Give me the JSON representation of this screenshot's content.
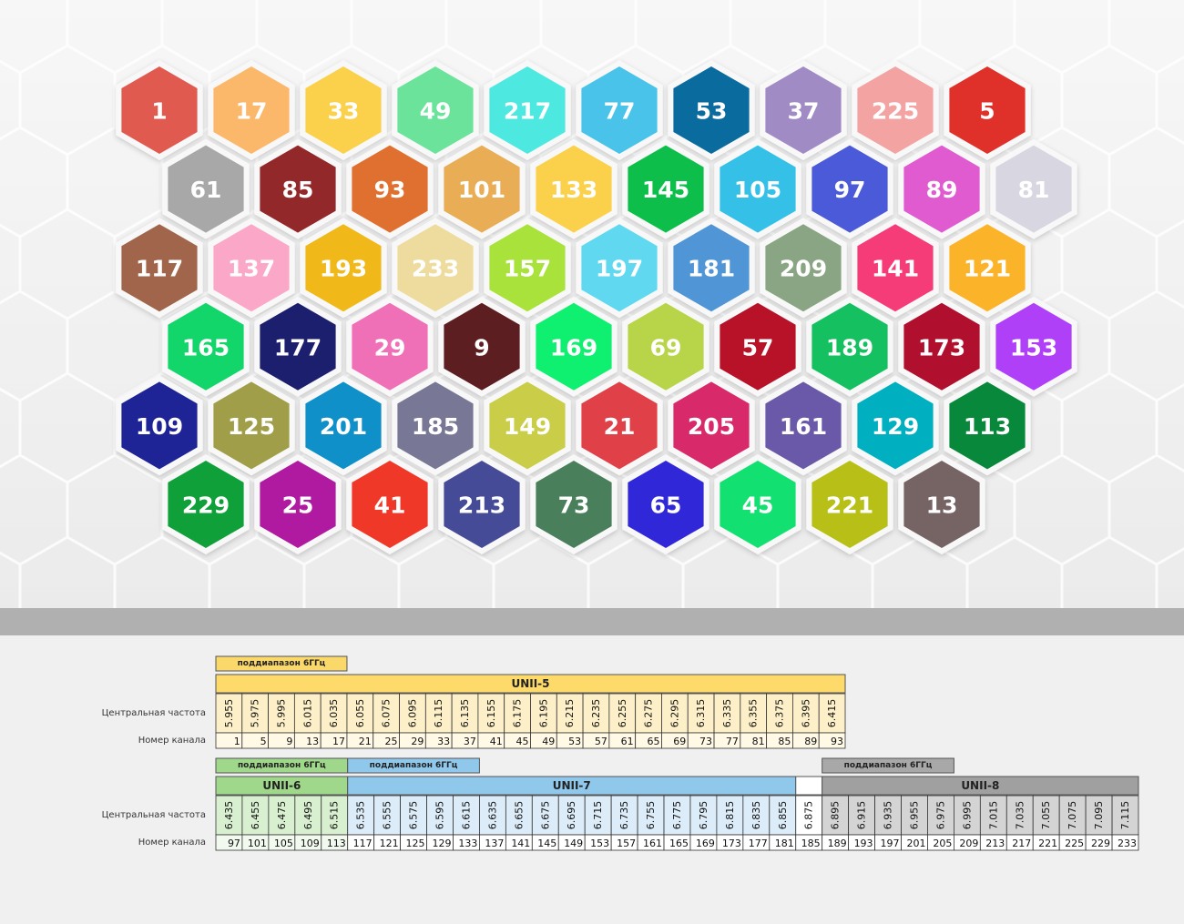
{
  "hexagons": {
    "rows": [
      [
        {
          "label": 1,
          "color": "#e05a50"
        },
        {
          "label": 17,
          "color": "#fbb86a"
        },
        {
          "label": 33,
          "color": "#fbd04a"
        },
        {
          "label": 49,
          "color": "#6be39a"
        },
        {
          "label": 217,
          "color": "#4de8e0"
        },
        {
          "label": 77,
          "color": "#49c3ea"
        },
        {
          "label": 53,
          "color": "#0a6b9e"
        },
        {
          "label": 37,
          "color": "#a08bc4"
        },
        {
          "label": 225,
          "color": "#f4a3a3"
        },
        {
          "label": 5,
          "color": "#e0302a"
        }
      ],
      [
        {
          "label": 61,
          "color": "#a8a8a8"
        },
        {
          "label": 85,
          "color": "#92282a"
        },
        {
          "label": 93,
          "color": "#e07030"
        },
        {
          "label": 101,
          "color": "#e8ad55"
        },
        {
          "label": 133,
          "color": "#fbd04a"
        },
        {
          "label": 145,
          "color": "#0dbf4a"
        },
        {
          "label": 105,
          "color": "#35c0e8"
        },
        {
          "label": 97,
          "color": "#4a5ad8"
        },
        {
          "label": 89,
          "color": "#e05ad0"
        },
        {
          "label": 81,
          "color": "#d8d6e0"
        }
      ],
      [
        {
          "label": 117,
          "color": "#a0654a"
        },
        {
          "label": 137,
          "color": "#fba8c8"
        },
        {
          "label": 193,
          "color": "#f0b818"
        },
        {
          "label": 233,
          "color": "#eedc9e"
        },
        {
          "label": 157,
          "color": "#a8e23a"
        },
        {
          "label": 197,
          "color": "#5fd8f0"
        },
        {
          "label": 181,
          "color": "#5095d5"
        },
        {
          "label": 209,
          "color": "#8aa584"
        },
        {
          "label": 141,
          "color": "#f53c78"
        },
        {
          "label": 121,
          "color": "#fbb42a"
        }
      ],
      [
        {
          "label": 165,
          "color": "#12d66a"
        },
        {
          "label": 177,
          "color": "#1c1e6e"
        },
        {
          "label": 29,
          "color": "#f070b8"
        },
        {
          "label": 9,
          "color": "#5c1e20"
        },
        {
          "label": 169,
          "color": "#10f070"
        },
        {
          "label": 69,
          "color": "#b8d448"
        },
        {
          "label": 57,
          "color": "#b81228"
        },
        {
          "label": 189,
          "color": "#15c060"
        },
        {
          "label": 173,
          "color": "#b0102e"
        },
        {
          "label": 153,
          "color": "#b040f8"
        }
      ],
      [
        {
          "label": 109,
          "color": "#1e2496"
        },
        {
          "label": 125,
          "color": "#a09e48"
        },
        {
          "label": 201,
          "color": "#1090c8"
        },
        {
          "label": 185,
          "color": "#787896"
        },
        {
          "label": 149,
          "color": "#cacd48"
        },
        {
          "label": 21,
          "color": "#e04048"
        },
        {
          "label": 205,
          "color": "#d82a6a"
        },
        {
          "label": 161,
          "color": "#6a58a8"
        },
        {
          "label": 129,
          "color": "#00b0c0"
        },
        {
          "label": 113,
          "color": "#08883a"
        }
      ],
      [
        {
          "label": 229,
          "color": "#10a03a"
        },
        {
          "label": 25,
          "color": "#b01aa0"
        },
        {
          "label": 41,
          "color": "#f03828"
        },
        {
          "label": 213,
          "color": "#464b98"
        },
        {
          "label": 73,
          "color": "#4a7f5c"
        },
        {
          "label": 65,
          "color": "#3028d8"
        },
        {
          "label": 45,
          "color": "#12e070"
        },
        {
          "label": 221,
          "color": "#b8c018"
        },
        {
          "label": 13,
          "color": "#766465"
        }
      ]
    ]
  },
  "tables": [
    {
      "row_labels": [
        "Центральная частота",
        "Номер канала"
      ],
      "groups": [
        {
          "subband": "поддиапазон 6ГГц",
          "subband_color": "#fbd86a",
          "band": "UNII-5",
          "band_color": "#fdda6a",
          "cell_color": "#fdf0c8",
          "channel_color": "#fff9e6",
          "frequencies": [
            5.955,
            5.975,
            5.995,
            6.015,
            6.035,
            6.055,
            6.075,
            6.095,
            6.115,
            6.135,
            6.155,
            6.175,
            6.195,
            6.215,
            6.235,
            6.255,
            6.275,
            6.295,
            6.315,
            6.335,
            6.355,
            6.375,
            6.395,
            6.415
          ],
          "channels": [
            1,
            5,
            9,
            13,
            17,
            21,
            25,
            29,
            33,
            37,
            41,
            45,
            49,
            53,
            57,
            61,
            65,
            69,
            73,
            77,
            81,
            85,
            89,
            93
          ]
        }
      ]
    },
    {
      "row_labels": [
        "Центральная частота",
        "Номер канала"
      ],
      "groups": [
        {
          "subband": "поддиапазон 6ГГц",
          "subband_color": "#9fd88a",
          "band": "UNII-6",
          "band_color": "#9fd88a",
          "cell_color": "#d8f0d0",
          "channel_color": "#f2faef",
          "frequencies": [
            6.435,
            6.455,
            6.475,
            6.495,
            6.515
          ],
          "channels": [
            97,
            101,
            105,
            109,
            113
          ]
        },
        {
          "subband": "поддиапазон 6ГГц",
          "subband_color": "#90c8ec",
          "band": "UNII-7",
          "band_color": "#90c8ec",
          "cell_color": "#dcecf8",
          "channel_color": "#ffffff",
          "frequencies": [
            6.535,
            6.555,
            6.575,
            6.595,
            6.615,
            6.635,
            6.655,
            6.675,
            6.695,
            6.715,
            6.735,
            6.755,
            6.775,
            6.795,
            6.815,
            6.835,
            6.855
          ],
          "channels": [
            117,
            121,
            125,
            129,
            133,
            137,
            141,
            145,
            149,
            153,
            157,
            161,
            165,
            169,
            173,
            177,
            181
          ]
        },
        {
          "band_color": "#ffffff",
          "cell_color": "#ffffff",
          "channel_color": "#ffffff",
          "frequencies": [
            6.875
          ],
          "channels": [
            185
          ]
        },
        {
          "subband": "поддиапазон 6ГГц",
          "subband_color": "#a8a8a8",
          "band": "UNII-8",
          "band_color": "#a0a0a0",
          "cell_color": "#d4d4d4",
          "channel_color": "#ffffff",
          "frequencies": [
            6.895,
            6.915,
            6.935,
            6.955,
            6.975,
            6.995,
            7.015,
            7.035,
            7.055,
            7.075,
            7.095,
            7.115
          ],
          "channels": [
            189,
            193,
            197,
            201,
            205,
            209,
            213,
            217,
            221,
            225,
            229,
            233
          ]
        }
      ]
    }
  ]
}
